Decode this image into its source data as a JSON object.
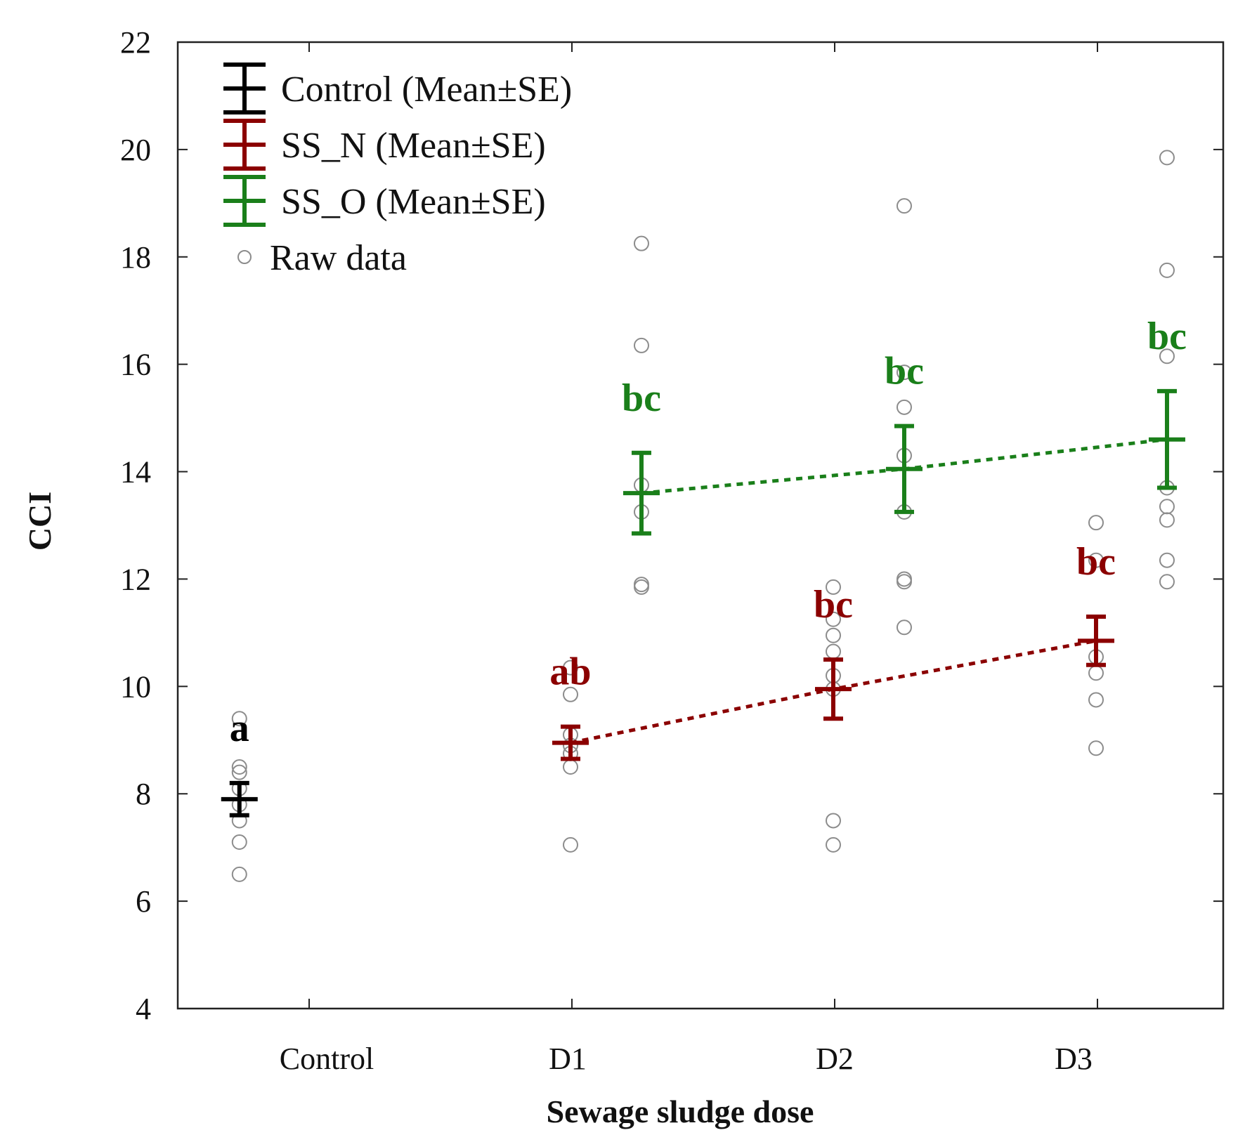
{
  "chart_data": {
    "type": "scatter",
    "title": "",
    "xlabel": "Sewage sludge dose",
    "ylabel": "CCI",
    "ylim": [
      4,
      22
    ],
    "yticks": [
      4,
      6,
      8,
      10,
      12,
      14,
      16,
      18,
      20,
      22
    ],
    "categories": [
      "Control",
      "D1",
      "D2",
      "D3"
    ],
    "legend_position": "top-left",
    "legend": [
      {
        "label": "Control (Mean±SE)",
        "kind": "errorbar",
        "color": "#000000"
      },
      {
        "label": "SS_N (Mean±SE)",
        "kind": "errorbar",
        "color": "#8b0000"
      },
      {
        "label": "SS_O (Mean±SE)",
        "kind": "errorbar",
        "color": "#1a7f1a"
      },
      {
        "label": "Raw data",
        "kind": "marker",
        "color": "#8c8c8c"
      }
    ],
    "series": [
      {
        "name": "Control",
        "color": "#000000",
        "connected": false,
        "points": [
          {
            "category": "Control",
            "offset": -0.26,
            "mean": 7.9,
            "se_low": 7.6,
            "se_high": 8.2,
            "letter": "a",
            "raw": [
              9.4,
              8.5,
              8.4,
              8.1,
              7.8,
              7.5,
              7.1,
              6.5
            ]
          }
        ]
      },
      {
        "name": "SS_N",
        "color": "#8b0000",
        "connected": true,
        "points": [
          {
            "category": "D1",
            "offset": 0.0,
            "mean": 8.95,
            "se_low": 8.65,
            "se_high": 9.25,
            "letter": "ab",
            "raw": [
              10.35,
              9.85,
              9.1,
              8.9,
              8.75,
              8.5,
              7.05
            ]
          },
          {
            "category": "D2",
            "offset": 0.0,
            "mean": 9.95,
            "se_low": 9.4,
            "se_high": 10.5,
            "letter": "bc",
            "raw": [
              11.85,
              11.25,
              10.95,
              10.65,
              10.2,
              9.95,
              7.5,
              7.05
            ]
          },
          {
            "category": "D3",
            "offset": 0.0,
            "mean": 10.85,
            "se_low": 10.4,
            "se_high": 11.3,
            "letter": "bc",
            "raw": [
              13.05,
              12.35,
              10.55,
              10.25,
              9.75,
              8.85
            ]
          }
        ]
      },
      {
        "name": "SS_O",
        "color": "#1a7f1a",
        "connected": true,
        "points": [
          {
            "category": "D1",
            "offset": 0.27,
            "mean": 13.6,
            "se_low": 12.85,
            "se_high": 14.35,
            "letter": "bc",
            "raw": [
              18.25,
              16.35,
              13.75,
              13.25,
              11.9,
              11.85
            ]
          },
          {
            "category": "D2",
            "offset": 0.27,
            "mean": 14.05,
            "se_low": 13.25,
            "se_high": 14.85,
            "letter": "bc",
            "raw": [
              18.95,
              15.85,
              15.2,
              14.3,
              13.25,
              12.0,
              11.95,
              11.1
            ]
          },
          {
            "category": "D3",
            "offset": 0.27,
            "mean": 14.6,
            "se_low": 13.7,
            "se_high": 15.5,
            "letter": "bc",
            "raw": [
              19.85,
              17.75,
              16.15,
              13.7,
              13.35,
              13.1,
              12.35,
              11.95
            ]
          }
        ]
      }
    ]
  }
}
